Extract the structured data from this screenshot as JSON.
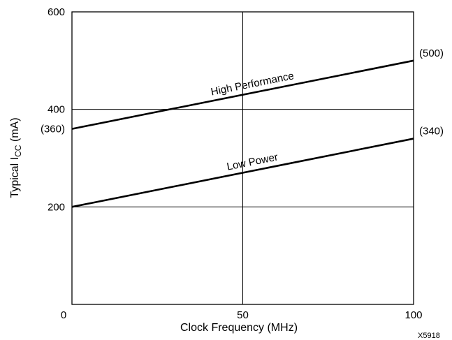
{
  "chart_data": {
    "type": "line",
    "xlabel": "Clock Frequency (MHz)",
    "ylabel": {
      "prefix": "Typical I",
      "subscript": "CC",
      "suffix": " (mA)"
    },
    "xlim": [
      0,
      100
    ],
    "ylim": [
      0,
      600
    ],
    "x_ticks": [
      0,
      50,
      100
    ],
    "y_ticks": [
      200,
      400,
      600
    ],
    "grid": true,
    "series": [
      {
        "name": "High Performance",
        "x": [
          0,
          100
        ],
        "y": [
          360,
          500
        ],
        "start_label": "(360)",
        "end_label": "(500)"
      },
      {
        "name": "Low Power",
        "x": [
          0,
          100
        ],
        "y": [
          200,
          340
        ],
        "start_label": "",
        "end_label": "(340)"
      }
    ],
    "figure_id": "X5918"
  }
}
